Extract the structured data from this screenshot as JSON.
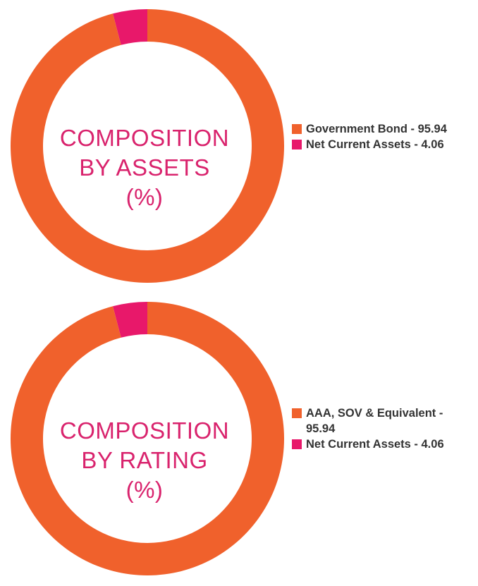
{
  "colors": {
    "primary": "#f0612c",
    "secondary": "#e8186a",
    "label": "#d9236d"
  },
  "charts": [
    {
      "title_lines": [
        "COMPOSITION",
        "BY ASSETS",
        "(%)"
      ],
      "legend": [
        "Government Bond - 95.94",
        "Net Current Assets - 4.06"
      ]
    },
    {
      "title_lines": [
        "COMPOSITION",
        "BY RATING",
        "(%)"
      ],
      "legend": [
        "AAA, SOV & Equivalent - 95.94",
        "Net Current Assets - 4.06"
      ]
    }
  ],
  "chart_data": [
    {
      "type": "pie",
      "title": "COMPOSITION BY ASSETS (%)",
      "categories": [
        "Government Bond",
        "Net Current Assets"
      ],
      "values": [
        95.94,
        4.06
      ],
      "colors": [
        "#f0612c",
        "#e8186a"
      ],
      "legend_position": "right"
    },
    {
      "type": "pie",
      "title": "COMPOSITION BY RATING (%)",
      "categories": [
        "AAA, SOV & Equivalent",
        "Net Current Assets"
      ],
      "values": [
        95.94,
        4.06
      ],
      "colors": [
        "#f0612c",
        "#e8186a"
      ],
      "legend_position": "right"
    }
  ]
}
